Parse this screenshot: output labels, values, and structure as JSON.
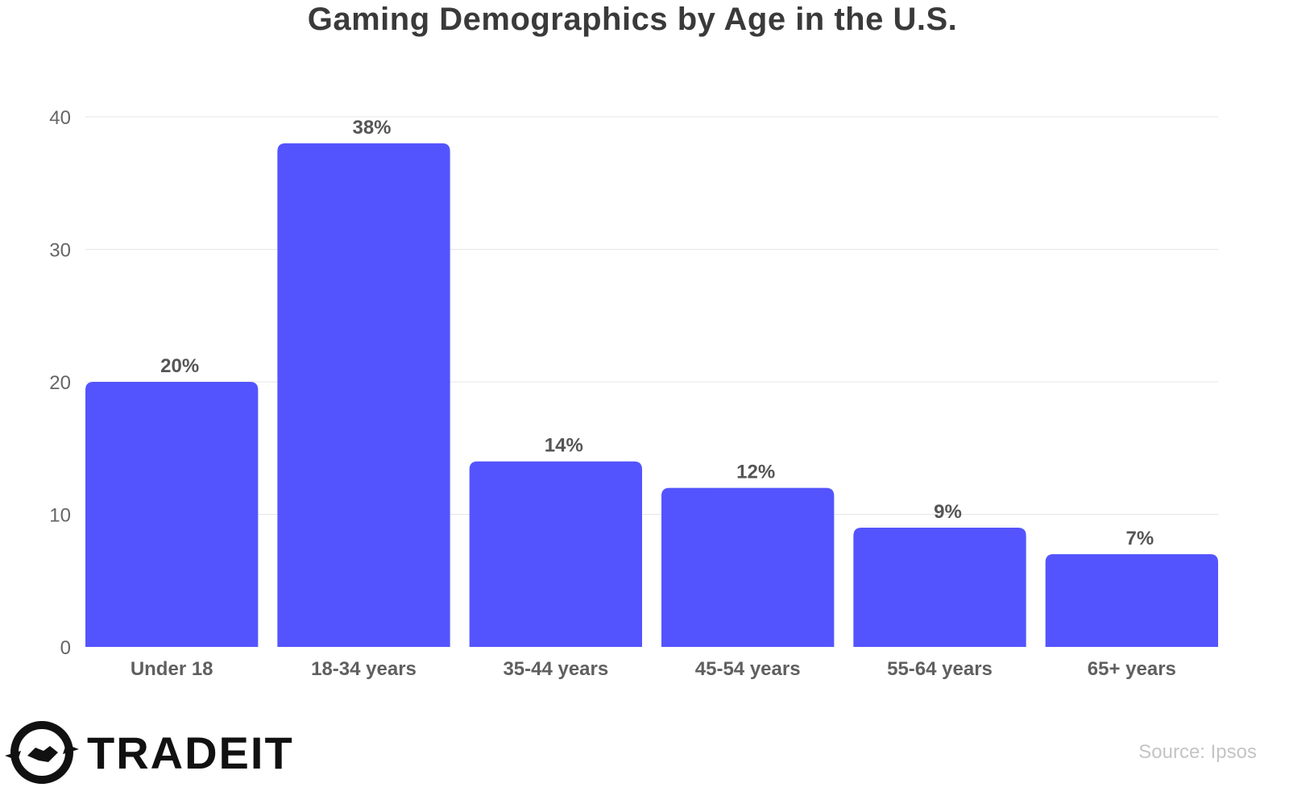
{
  "chart_data": {
    "type": "bar",
    "title": "Gaming Demographics by Age in the U.S.",
    "xlabel": "",
    "ylabel": "",
    "categories": [
      "Under 18",
      "18-34 years",
      "35-44 years",
      "45-54 years",
      "55-64 years",
      "65+ years"
    ],
    "values": [
      20,
      38,
      14,
      12,
      9,
      7
    ],
    "data_labels": [
      "20%",
      "38%",
      "14%",
      "12%",
      "9%",
      "7%"
    ],
    "ylim": [
      0,
      40
    ],
    "yticks": [
      0,
      10,
      20,
      30,
      40
    ],
    "grid": true,
    "legend": "none",
    "bar_color": "#5454ff"
  },
  "branding": {
    "logo_text": "TRADEIT",
    "source": "Source: Ipsos"
  },
  "icons": {
    "logo": "handshake-logo-icon"
  }
}
